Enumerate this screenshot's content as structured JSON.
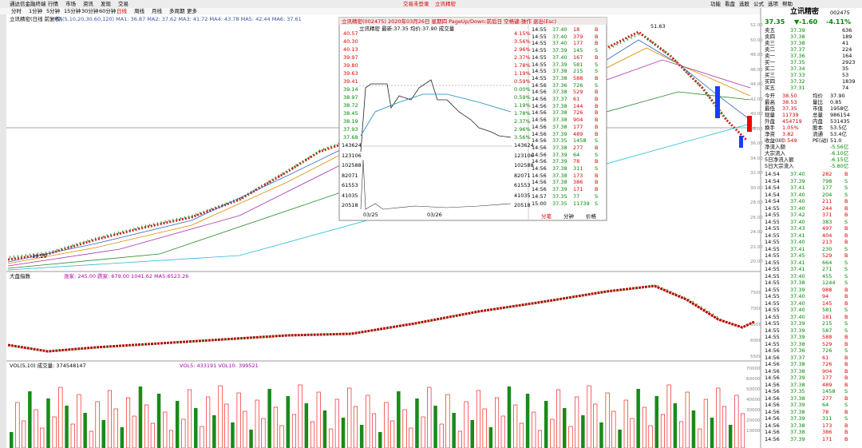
{
  "menu": {
    "app": "通达信金融终端",
    "items": [
      "行情",
      "市场",
      "资讯",
      "发现",
      "交易"
    ],
    "status": [
      "交易未登录",
      "立讯精密"
    ],
    "right": [
      "功能",
      "看盘",
      "选股",
      "公式",
      "选项",
      "帮助"
    ]
  },
  "periods": [
    "分时",
    "1分钟",
    "5分钟",
    "15分钟",
    "30分钟",
    "60分钟",
    "日线",
    "周线",
    "月线",
    "多周期",
    "更多"
  ],
  "main": {
    "title": "立讯精密(日线 前复权)",
    "ma": "MA(5,10,20,30,60,120) MA1: 36.87 MA2: 37.62 MA3: 41.72 MA4: 43.78 MA5: 42.44 MA6: 37.61",
    "yticks": [
      "52.00",
      "50.00",
      "48.00",
      "46.00",
      "44.00",
      "42.00",
      "40.00",
      "38.00",
      "36.00",
      "34.00",
      "32.00",
      "30.00",
      "28.00",
      "26.00",
      "24.00",
      "22.00",
      "20.00"
    ],
    "high": "51.63",
    "low": "19.29"
  },
  "index": {
    "title": "大盘指数",
    "info": "涨家: 245.00 跌家: 679.00 1041.62 MA5:6523.26",
    "yticks": [
      "7500",
      "7000",
      "6500",
      "6000",
      "5500"
    ]
  },
  "volume": {
    "title": "VOL(5,10) 成交量: 374548147",
    "info": "VOL5: 433191 VOL10: 399521",
    "yticks": [
      "70000",
      "60000",
      "50000",
      "40000",
      "30000",
      "20000",
      "10000"
    ]
  },
  "popup": {
    "title": "立讯精密(002475) 2020年03月26日 星期四 PageUp/Down:前后日 空格键:操作 退出(Esc)",
    "header": "立讯精密 最新:37.35 均价:37.90 成交量",
    "prices": [
      "40.57",
      "40.30",
      "40.13",
      "39.97",
      "39.80",
      "39.63",
      "39.41",
      "39.14",
      "38.97",
      "38.72",
      "38.45",
      "38.19",
      "37.93",
      "37.68"
    ],
    "pcts": [
      "4.15%",
      "3.56%",
      "2.96%",
      "2.37%",
      "1.78%",
      "1.19%",
      "0.59%",
      "0.00%",
      "0.59%",
      "1.19%",
      "1.78%",
      "2.37%",
      "2.96%",
      "3.56%"
    ],
    "vols": [
      "143624",
      "123106",
      "102588",
      "82071",
      "61553",
      "41035",
      "20518"
    ],
    "dates": [
      "03/25",
      "03/26"
    ],
    "rows": [
      [
        "14:55",
        "37.40",
        "18",
        "B"
      ],
      [
        "14:55",
        "37.40",
        "379",
        "B"
      ],
      [
        "14:55",
        "37.40",
        "177",
        "B"
      ],
      [
        "14:55",
        "37.39",
        "145",
        "S"
      ],
      [
        "14:55",
        "37.40",
        "167",
        "B"
      ],
      [
        "14:55",
        "37.39",
        "581",
        "S"
      ],
      [
        "14:55",
        "37.38",
        "215",
        "S"
      ],
      [
        "14:55",
        "37.38",
        "588",
        "B"
      ],
      [
        "14:56",
        "37.36",
        "726",
        "S"
      ],
      [
        "14:56",
        "37.38",
        "529",
        "B"
      ],
      [
        "14:56",
        "37.37",
        "61",
        "B"
      ],
      [
        "14:56",
        "37.38",
        "144",
        "B"
      ],
      [
        "14:56",
        "37.38",
        "726",
        "B"
      ],
      [
        "14:56",
        "37.38",
        "904",
        "B"
      ],
      [
        "14:56",
        "37.38",
        "177",
        "B"
      ],
      [
        "14:56",
        "37.39",
        "489",
        "B"
      ],
      [
        "14:56",
        "37.35",
        "1458",
        "S"
      ],
      [
        "14:56",
        "37.38",
        "277",
        "B"
      ],
      [
        "14:56",
        "37.39",
        "64",
        "S"
      ],
      [
        "14:56",
        "37.39",
        "78",
        "B"
      ],
      [
        "14:56",
        "37.38",
        "311",
        "S"
      ],
      [
        "14:56",
        "37.38",
        "173",
        "B"
      ],
      [
        "14:56",
        "37.38",
        "386",
        "B"
      ],
      [
        "14:56",
        "37.39",
        "171",
        "B"
      ],
      [
        "14:57",
        "37.35",
        "77",
        "S"
      ],
      [
        "15:00",
        "37.35",
        "11739",
        "S"
      ]
    ],
    "tabs": [
      "分笔",
      "分钟",
      "价格"
    ]
  },
  "quote": {
    "name": "立讯精密",
    "code": "002475",
    "price": "37.35",
    "change": "▼-1.60",
    "pct": "-4.11%",
    "book": [
      [
        "卖五",
        "37.39",
        "636"
      ],
      [
        "卖四",
        "37.38",
        "189"
      ],
      [
        "卖三",
        "37.38",
        "41"
      ],
      [
        "卖二",
        "37.37",
        "224"
      ],
      [
        "卖一",
        "37.36",
        "164"
      ],
      [
        "买一",
        "37.35",
        "2923"
      ],
      [
        "买二",
        "37.34",
        "35"
      ],
      [
        "买三",
        "37.33",
        "53"
      ],
      [
        "买四",
        "37.32",
        "1839"
      ],
      [
        "买五",
        "37.31",
        "74"
      ]
    ],
    "stats": [
      [
        "今开",
        "38.50",
        "均价",
        "37.90"
      ],
      [
        "最高",
        "38.53",
        "量比",
        "0.85"
      ],
      [
        "最低",
        "37.35",
        "市值",
        "1958亿"
      ],
      [
        "现量",
        "11739",
        "总量",
        "986154"
      ],
      [
        "外盘",
        "454719",
        "内盘",
        "531435"
      ],
      [
        "换手",
        "1.05%",
        "股本",
        "53.5亿"
      ],
      [
        "净资",
        "3.82",
        "流通",
        "53.4亿"
      ],
      [
        "收益(III)",
        "0.549",
        "PE(动)",
        "51.0"
      ]
    ],
    "flow": [
      [
        "净流入额",
        "-5.56亿"
      ],
      [
        "大宗流入",
        "-6.10亿"
      ],
      [
        "5日净流入额",
        "-6.15亿"
      ],
      [
        "5日大宗流入",
        "-5.80亿"
      ]
    ]
  },
  "ticks": [
    [
      "14:54",
      "37.40",
      "282",
      "B"
    ],
    [
      "14:54",
      "37.39",
      "798",
      "S"
    ],
    [
      "14:54",
      "37.41",
      "177",
      "S"
    ],
    [
      "14:54",
      "37.40",
      "204",
      "S"
    ],
    [
      "14:54",
      "37.40",
      "211",
      "B"
    ],
    [
      "14:55",
      "37.40",
      "244",
      "B"
    ],
    [
      "14:55",
      "37.42",
      "371",
      "B"
    ],
    [
      "14:55",
      "37.40",
      "383",
      "S"
    ],
    [
      "14:55",
      "37.43",
      "497",
      "B"
    ],
    [
      "14:55",
      "37.41",
      "404",
      "B"
    ],
    [
      "14:55",
      "37.40",
      "213",
      "B"
    ],
    [
      "14:55",
      "37.41",
      "230",
      "S"
    ],
    [
      "14:55",
      "37.45",
      "529",
      "B"
    ],
    [
      "14:55",
      "37.41",
      "664",
      "S"
    ],
    [
      "14:55",
      "37.41",
      "271",
      "S"
    ],
    [
      "14:55",
      "37.40",
      "455",
      "S"
    ],
    [
      "14:55",
      "37.38",
      "1244",
      "S"
    ],
    [
      "14:55",
      "37.39",
      "988",
      "B"
    ],
    [
      "14:55",
      "37.40",
      "94",
      "B"
    ],
    [
      "14:55",
      "37.40",
      "145",
      "B"
    ],
    [
      "14:55",
      "37.40",
      "581",
      "S"
    ],
    [
      "14:55",
      "37.40",
      "181",
      "B"
    ],
    [
      "14:55",
      "37.39",
      "215",
      "S"
    ],
    [
      "14:55",
      "37.39",
      "587",
      "S"
    ],
    [
      "14:55",
      "37.39",
      "588",
      "B"
    ],
    [
      "14:55",
      "37.38",
      "529",
      "B"
    ],
    [
      "14:56",
      "37.36",
      "726",
      "S"
    ],
    [
      "14:56",
      "37.37",
      "61",
      "B"
    ],
    [
      "14:56",
      "37.38",
      "726",
      "B"
    ],
    [
      "14:56",
      "37.38",
      "904",
      "B"
    ],
    [
      "14:56",
      "37.39",
      "177",
      "B"
    ],
    [
      "14:56",
      "37.38",
      "489",
      "B"
    ],
    [
      "14:56",
      "37.35",
      "1458",
      "S"
    ],
    [
      "14:56",
      "37.38",
      "277",
      "B"
    ],
    [
      "14:56",
      "37.39",
      "64",
      "S"
    ],
    [
      "14:56",
      "37.38",
      "78",
      "B"
    ],
    [
      "14:56",
      "37.39",
      "311",
      "S"
    ],
    [
      "14:56",
      "37.38",
      "173",
      "B"
    ],
    [
      "14:56",
      "37.38",
      "386",
      "B"
    ],
    [
      "14:56",
      "37.39",
      "171",
      "B"
    ]
  ]
}
